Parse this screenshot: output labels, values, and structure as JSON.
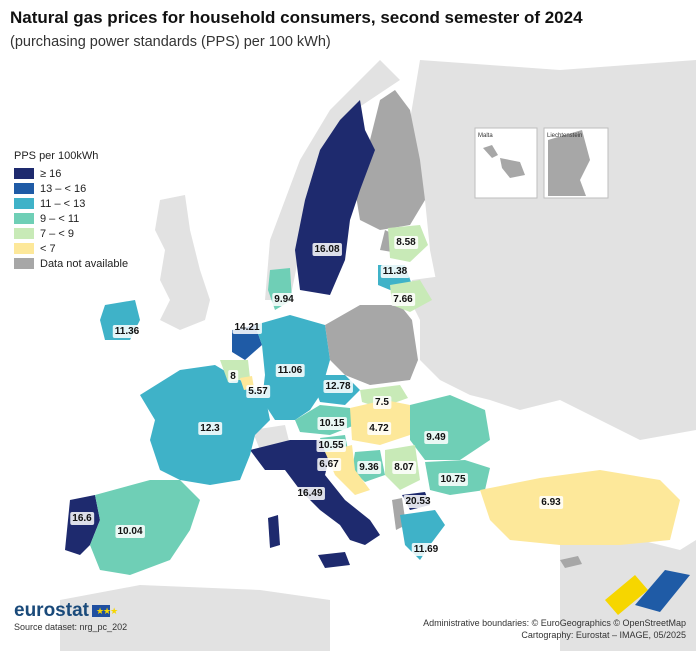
{
  "title": "Natural gas prices for household consumers, second semester of 2024",
  "subtitle": "(purchasing power standards (PPS) per 100 kWh)",
  "legend": {
    "title": "PPS per 100kWh",
    "classes": [
      {
        "label": "≥ 16",
        "color": "#1e2a6e"
      },
      {
        "label": "13 – < 16",
        "color": "#1f5ba6"
      },
      {
        "label": "11 – < 13",
        "color": "#3fb2c8"
      },
      {
        "label": "9 – < 11",
        "color": "#6fcfb6"
      },
      {
        "label": "7 – < 9",
        "color": "#c8eab7"
      },
      {
        "label": "< 7",
        "color": "#fde89a"
      },
      {
        "label": "Data not available",
        "color": "#a7a7a7"
      }
    ]
  },
  "insets": {
    "malta": "Malta",
    "liechtenstein": "Liechtenstein"
  },
  "values": {
    "sweden": "16.08",
    "latvia": "8.58",
    "lithuania": "11.38",
    "estonia": "7.66",
    "denmark": "9.94",
    "ireland": "11.36",
    "netherlands": "14.21",
    "belgium": "8",
    "luxembourg": "5.57",
    "germany": "11.06",
    "czechia": "12.78",
    "slovakia": "7.5",
    "austria": "10.15",
    "hungary": "4.72",
    "slovenia": "10.55",
    "croatia": "6.67",
    "bosnia": "9.36",
    "serbia": "8.07",
    "romania": "9.49",
    "bulgaria": "10.75",
    "france": "12.3",
    "italy": "16.49",
    "macedonia": "20.53",
    "greece": "11.69",
    "turkey": "6.93",
    "portugal": "16.6",
    "spain": "10.04"
  },
  "branding": {
    "logo": "eurostat",
    "flag_stars": "★★★"
  },
  "source": "Source dataset: nrg_pc_202",
  "credits": {
    "line1": "Administrative boundaries: © EuroGeographics © OpenStreetMap",
    "line2": "Cartography: Eurostat – IMAGE, 05/2025"
  }
}
